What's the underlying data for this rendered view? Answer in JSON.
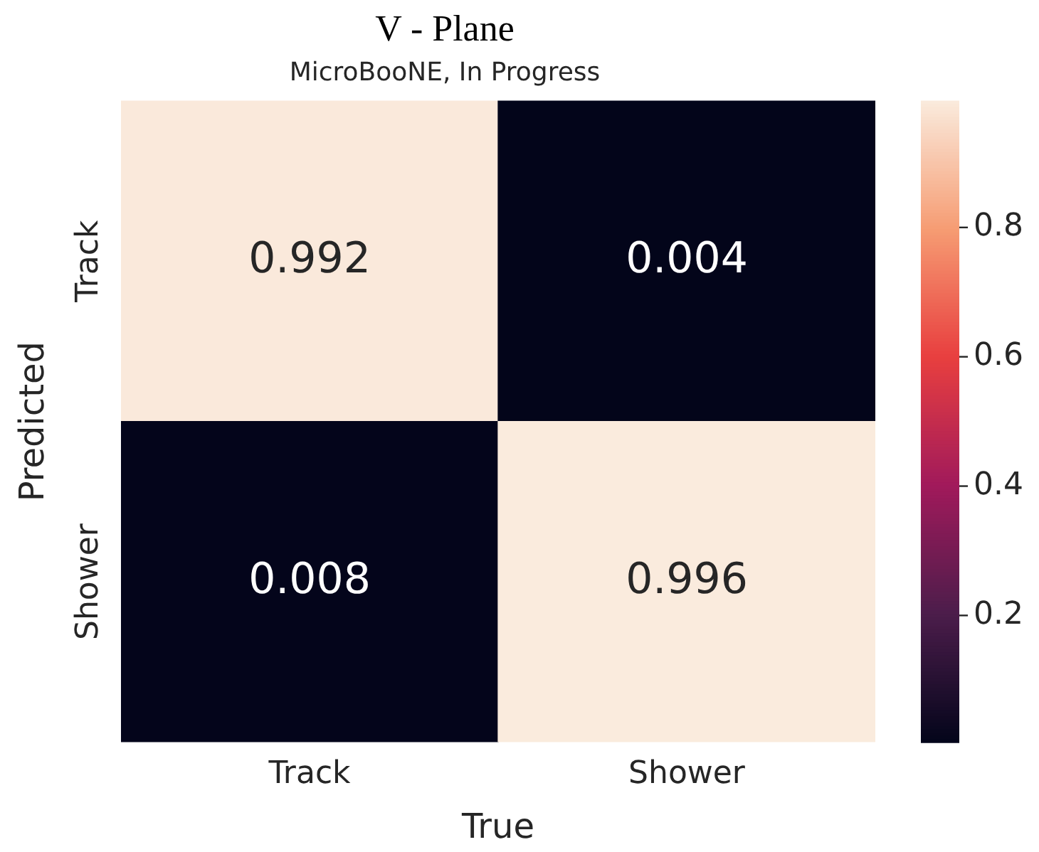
{
  "chart_data": {
    "type": "heatmap",
    "title": "V - Plane",
    "subtitle": "MicroBooNE, In Progress",
    "xlabel": "True",
    "ylabel": "Predicted",
    "categories": [
      "Track",
      "Shower"
    ],
    "y_categories": [
      "Track",
      "Shower"
    ],
    "cells": [
      [
        0.992,
        0.004
      ],
      [
        0.008,
        0.996
      ]
    ],
    "clim": [
      0.004,
      0.996
    ],
    "cticks": [
      0.2,
      0.4,
      0.6,
      0.8
    ],
    "data_labels": true,
    "grid": false,
    "legend": false
  }
}
